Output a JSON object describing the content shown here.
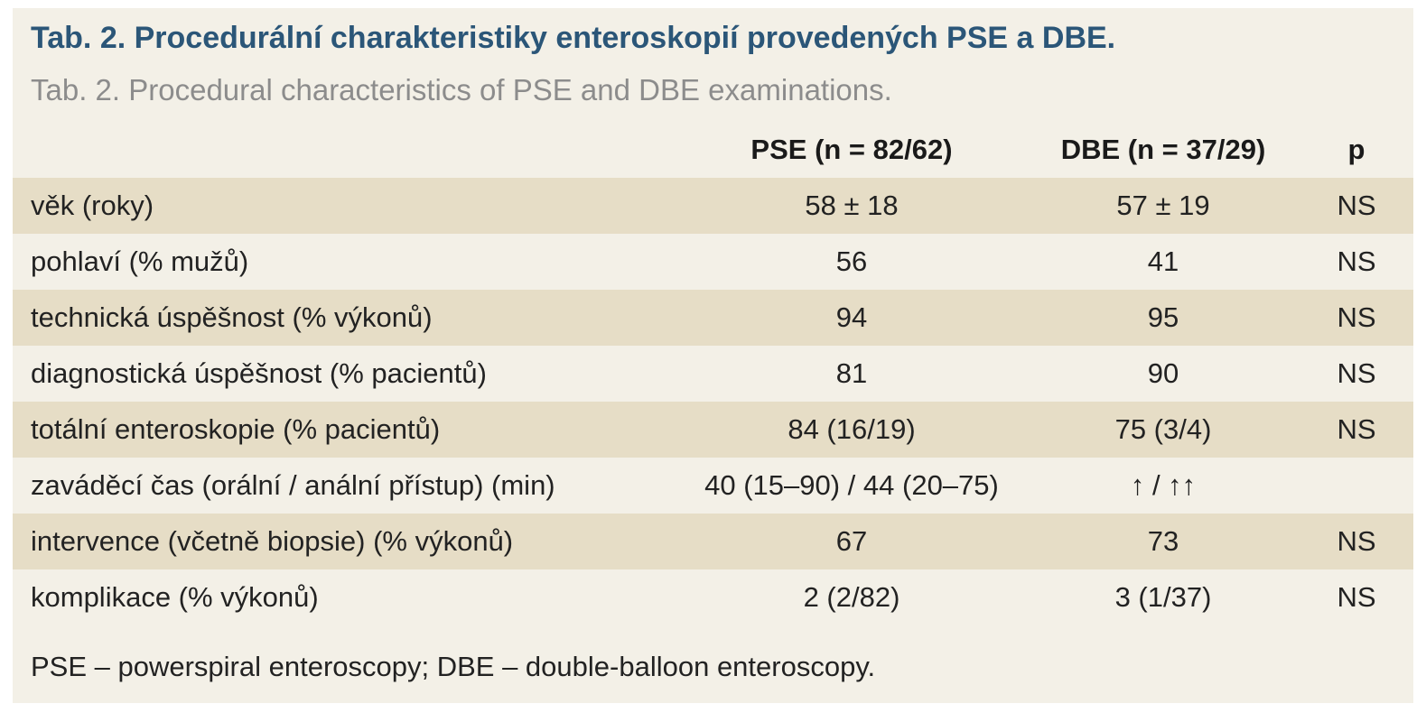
{
  "table": {
    "title": "Tab. 2. Procedurální charakteristiky enteroskopií provedených PSE a DBE.",
    "subtitle": "Tab. 2. Procedural characteristics of PSE and DBE examinations.",
    "headers": [
      "",
      "PSE (n = 82/62)",
      "DBE (n = 37/29)",
      "p"
    ],
    "rows": [
      [
        "věk (roky)",
        "58 ± 18",
        "57 ± 19",
        "NS"
      ],
      [
        "pohlaví (% mužů)",
        "56",
        "41",
        "NS"
      ],
      [
        "technická úspěšnost (% výkonů)",
        "94",
        "95",
        "NS"
      ],
      [
        "diagnostická úspěšnost (% pacientů)",
        "81",
        "90",
        "NS"
      ],
      [
        "totální enteroskopie (% pacientů)",
        "84 (16/19)",
        "75 (3/4)",
        "NS"
      ],
      [
        "zaváděcí čas (orální / anální přístup) (min)",
        "40 (15–90) / 44 (20–75)",
        "↑ / ↑↑",
        ""
      ],
      [
        "intervence (včetně biopsie) (% výkonů)",
        "67",
        "73",
        "NS"
      ],
      [
        "komplikace (% výkonů)",
        "2 (2/82)",
        "3 (1/37)",
        "NS"
      ]
    ],
    "footnote": "PSE – powerspiral enteroscopy; DBE – double-balloon enteroscopy."
  }
}
